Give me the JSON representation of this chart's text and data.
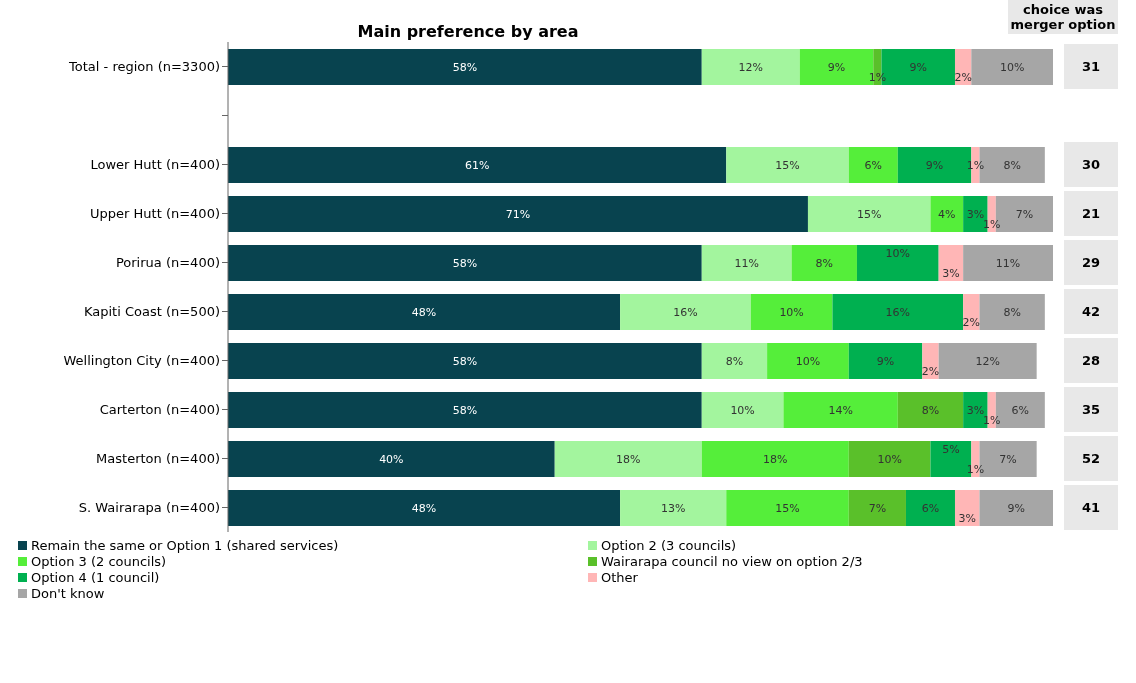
{
  "chart_data": {
    "type": "bar",
    "orientation": "horizontal",
    "stacked": true,
    "title": "Main preference by area",
    "categories": [
      "Total - region (n=3300)",
      null,
      "Lower Hutt (n=400)",
      "Upper Hutt (n=400)",
      "Porirua (n=400)",
      "Kapiti Coast (n=500)",
      "Wellington City (n=400)",
      "Carterton (n=400)",
      "Masterton (n=400)",
      "S. Wairarapa (n=400)"
    ],
    "series": [
      {
        "name": "Remain the same or Option 1 (shared services)",
        "color": "#08434f",
        "values": [
          58,
          null,
          61,
          71,
          58,
          48,
          58,
          58,
          40,
          48
        ],
        "value_labels": [
          "58%",
          null,
          "61%",
          "71%",
          "58%",
          "48%",
          "58%",
          "58%",
          "40%",
          "48%"
        ]
      },
      {
        "name": "Option 2 (3 councils)",
        "color": "#a3f59e",
        "values": [
          12,
          null,
          15,
          15,
          11,
          16,
          8,
          10,
          18,
          13
        ],
        "value_labels": [
          "12%",
          null,
          "15%",
          "15%",
          "11%",
          "16%",
          "8%",
          "10%",
          "18%",
          "13%"
        ]
      },
      {
        "name": "Option 3 (2 councils)",
        "color": "#55ee3a",
        "values": [
          9,
          null,
          6,
          4,
          8,
          10,
          10,
          14,
          18,
          15
        ],
        "value_labels": [
          "9%",
          null,
          "6%",
          "4%",
          "8%",
          "10%",
          "10%",
          "14%",
          "18%",
          "15%"
        ]
      },
      {
        "name": "Wairarapa council no view on option 2/3",
        "color": "#5ac02a",
        "values": [
          1,
          null,
          null,
          null,
          null,
          null,
          null,
          8,
          10,
          7
        ],
        "value_labels": [
          "1%",
          null,
          null,
          null,
          null,
          null,
          null,
          "8%",
          "10%",
          "7%"
        ]
      },
      {
        "name": "Option 4 (1 council)",
        "color": "#00b050",
        "values": [
          9,
          null,
          9,
          3,
          10,
          16,
          9,
          3,
          5,
          6
        ],
        "value_labels": [
          "9%",
          null,
          "9%",
          "3%",
          "10%",
          "16%",
          "9%",
          "3%",
          "5%",
          "6%"
        ]
      },
      {
        "name": "Other",
        "color": "#ffb6b6",
        "values": [
          2,
          null,
          1,
          1,
          3,
          2,
          2,
          1,
          1,
          3
        ],
        "value_labels": [
          "2%",
          null,
          "1%",
          "1%",
          "3%",
          "2%",
          "2%",
          "1%",
          "1%",
          "3%"
        ]
      },
      {
        "name": "Don't know",
        "color": "#a6a6a6",
        "values": [
          10,
          null,
          8,
          7,
          11,
          8,
          12,
          6,
          7,
          9
        ],
        "value_labels": [
          "10%",
          null,
          "8%",
          "7%",
          "11%",
          "8%",
          "12%",
          "6%",
          "7%",
          "9%"
        ]
      }
    ],
    "legend": "bottom",
    "annotations": [
      "choice was merger option",
      "31",
      "30",
      "21",
      "29",
      "42",
      "28",
      "35",
      "52",
      "41"
    ]
  }
}
